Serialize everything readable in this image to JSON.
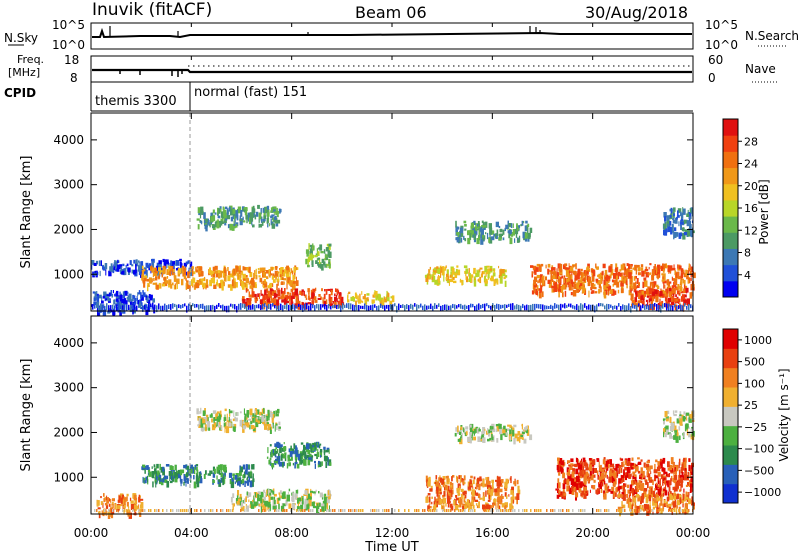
{
  "header": {
    "station": "Inuvik (fitACF)",
    "beam": "Beam 06",
    "date": "30/Aug/2018"
  },
  "noise_panel": {
    "left_label": "N.Sky",
    "right_label": "N.Search",
    "left_ticks": [
      "10^5",
      "10^0"
    ],
    "right_ticks": [
      "10^5",
      "10^0"
    ]
  },
  "freq_panel": {
    "left_label_1": "Freq.",
    "left_label_2": "[MHz]",
    "right_label": "Nave",
    "left_ticks": [
      "18",
      "8"
    ],
    "right_ticks": [
      "60",
      "0"
    ]
  },
  "cpid": {
    "label": "CPID",
    "segments": [
      {
        "name": "themis 3300",
        "start": 0.0,
        "end": 4.0
      },
      {
        "name": "normal (fast) 151",
        "start": 4.0,
        "end": 24.0
      }
    ]
  },
  "x_axis": {
    "label": "Time UT",
    "ticks": [
      "00:00",
      "04:00",
      "08:00",
      "12:00",
      "16:00",
      "20:00",
      "00:00"
    ],
    "range_hours": [
      0,
      24
    ]
  },
  "y_axis": {
    "label": "Slant Range [km]",
    "ticks": [
      "1000",
      "2000",
      "3000",
      "4000"
    ],
    "range_km": [
      180,
      4600
    ]
  },
  "power_colorbar": {
    "label": "Power [dB]",
    "ticks": [
      "4",
      "8",
      "12",
      "16",
      "20",
      "24",
      "28"
    ],
    "colors": [
      "#0000f0",
      "#2050d8",
      "#3c78b4",
      "#4c9a64",
      "#6ab84a",
      "#b8d628",
      "#f0c020",
      "#f09818",
      "#f07010",
      "#f04010",
      "#e01010"
    ]
  },
  "velocity_colorbar": {
    "label": "Velocity [m s⁻¹]",
    "ticks": [
      "1000",
      "500",
      "100",
      "25",
      "−25",
      "−100",
      "−500",
      "−1000"
    ],
    "colors": [
      "#1030d0",
      "#2860b8",
      "#2c8a4c",
      "#4cb040",
      "#c8c8c0",
      "#f0b030",
      "#f08020",
      "#e84010",
      "#e00000"
    ]
  },
  "chart_data": {
    "type": "heatmap",
    "x_unit": "hours UT",
    "y_unit": "km",
    "power_regions": [
      {
        "t0": 0.0,
        "t1": 4.0,
        "r0": 1050,
        "r1": 1350,
        "level": 1
      },
      {
        "t0": 2.0,
        "t1": 8.2,
        "r0": 750,
        "r1": 1200,
        "level": 7
      },
      {
        "t0": 4.2,
        "t1": 7.5,
        "r0": 2100,
        "r1": 2550,
        "level": 3
      },
      {
        "t0": 6.0,
        "t1": 10.0,
        "r0": 350,
        "r1": 700,
        "level": 9
      },
      {
        "t0": 10.2,
        "t1": 12.0,
        "r0": 400,
        "r1": 650,
        "level": 6
      },
      {
        "t0": 8.5,
        "t1": 9.5,
        "r0": 1200,
        "r1": 1700,
        "level": 4
      },
      {
        "t0": 13.3,
        "t1": 16.5,
        "r0": 850,
        "r1": 1200,
        "level": 6
      },
      {
        "t0": 14.5,
        "t1": 17.5,
        "r0": 1800,
        "r1": 2200,
        "level": 3
      },
      {
        "t0": 17.5,
        "t1": 24.0,
        "r0": 600,
        "r1": 1250,
        "level": 8
      },
      {
        "t0": 21.5,
        "t1": 23.8,
        "r0": 300,
        "r1": 700,
        "level": 9
      },
      {
        "t0": 0.0,
        "t1": 2.5,
        "r0": 180,
        "r1": 650,
        "level": 1
      },
      {
        "t0": 22.8,
        "t1": 24.0,
        "r0": 1900,
        "r1": 2500,
        "level": 2
      }
    ],
    "velocity_regions": [
      {
        "t0": 0.2,
        "t1": 2.0,
        "r0": 200,
        "r1": 650,
        "level": 6
      },
      {
        "t0": 2.0,
        "t1": 6.5,
        "r0": 900,
        "r1": 1300,
        "level": 2
      },
      {
        "t0": 4.2,
        "t1": 7.5,
        "r0": 2100,
        "r1": 2550,
        "level": 4
      },
      {
        "t0": 5.5,
        "t1": 9.5,
        "r0": 350,
        "r1": 750,
        "level": 4
      },
      {
        "t0": 7.0,
        "t1": 9.5,
        "r0": 1300,
        "r1": 1800,
        "level": 2
      },
      {
        "t0": 13.3,
        "t1": 17.0,
        "r0": 350,
        "r1": 1050,
        "level": 6
      },
      {
        "t0": 14.5,
        "t1": 17.5,
        "r0": 1850,
        "r1": 2200,
        "level": 4
      },
      {
        "t0": 18.5,
        "t1": 24.0,
        "r0": 600,
        "r1": 1450,
        "level": 7
      },
      {
        "t0": 21.0,
        "t1": 24.0,
        "r0": 250,
        "r1": 650,
        "level": 6
      },
      {
        "t0": 22.8,
        "t1": 24.0,
        "r0": 1900,
        "r1": 2500,
        "level": 4
      }
    ]
  }
}
